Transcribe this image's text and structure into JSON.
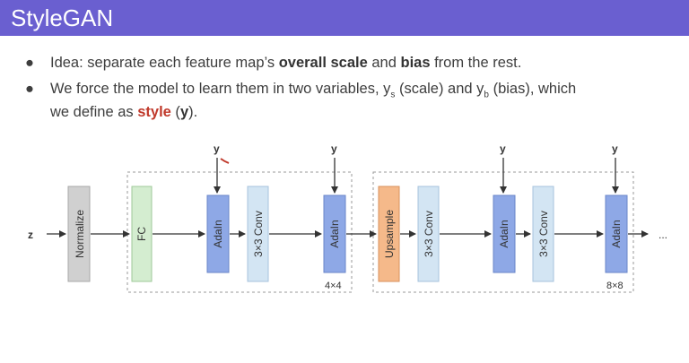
{
  "slide": {
    "title": "StyleGAN",
    "bullets": [
      {
        "prefix": "Idea: separate each feature map’s ",
        "bold1": "overall scale",
        "mid": " and ",
        "bold2": "bias",
        "suffix": " from the rest."
      },
      {
        "line1_prefix": "We force the model to learn them in two variables, y",
        "sub_s": "s",
        "line1_mid": " (scale) and y",
        "sub_b": "b",
        "line1_suffix": " (bias), which",
        "line2_prefix": "we define as ",
        "style_word": "style",
        "line2_mid": " (",
        "y_word": "y",
        "line2_suffix": ")."
      }
    ]
  },
  "diagram": {
    "input_label": "z",
    "blocks": {
      "normalize": "Normalize",
      "fc": "FC",
      "adain1": "AdaIn",
      "conv1": "3×3 Conv",
      "adain2": "AdaIn",
      "upsample": "Upsample",
      "conv2": "3×3 Conv",
      "adain3": "AdaIn",
      "conv3": "3×3 Conv",
      "adain4": "AdaIn"
    },
    "y_labels": [
      "y",
      "y",
      "y",
      "y"
    ],
    "resolution_labels": [
      "4×4",
      "8×8"
    ],
    "ellipsis": "...",
    "colors": {
      "title_bar": "#6a5fd0",
      "normalize": "#d0d0d0",
      "fc": "#d4edd0",
      "adain": "#8ea8e6",
      "conv": "#d3e5f3",
      "upsample": "#f5b98a",
      "accent_red": "#c0392b"
    }
  }
}
